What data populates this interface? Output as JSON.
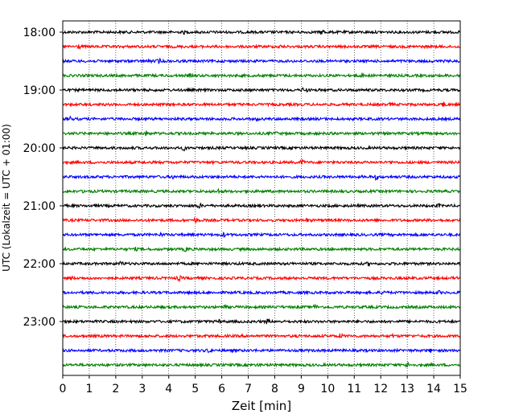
{
  "chart_data": {
    "type": "line",
    "title": "",
    "xlabel": "Zeit  [min]",
    "ylabel": "UTC (Lokalzeit = UTC + 01:00)",
    "xlim": [
      0,
      15
    ],
    "x_ticks": [
      0,
      1,
      2,
      3,
      4,
      5,
      6,
      7,
      8,
      9,
      10,
      11,
      12,
      13,
      14,
      15
    ],
    "y_tick_labels": [
      "18:00",
      "19:00",
      "20:00",
      "21:00",
      "22:00",
      "23:00"
    ],
    "grid": {
      "x": true,
      "y": false,
      "style": "dotted"
    },
    "trace_interval_minutes": 15,
    "trace_count": 24,
    "trace_colors": [
      "#000000",
      "#ff0000",
      "#0000ff",
      "#008000"
    ],
    "series": [
      {
        "start": "18:00"
      },
      {
        "start": "18:15"
      },
      {
        "start": "18:30"
      },
      {
        "start": "18:45"
      },
      {
        "start": "19:00"
      },
      {
        "start": "19:15"
      },
      {
        "start": "19:30"
      },
      {
        "start": "19:45"
      },
      {
        "start": "20:00"
      },
      {
        "start": "20:15"
      },
      {
        "start": "20:30"
      },
      {
        "start": "20:45"
      },
      {
        "start": "21:00"
      },
      {
        "start": "21:15"
      },
      {
        "start": "21:30"
      },
      {
        "start": "21:45"
      },
      {
        "start": "22:00"
      },
      {
        "start": "22:15"
      },
      {
        "start": "22:30"
      },
      {
        "start": "22:45"
      },
      {
        "start": "23:00"
      },
      {
        "start": "23:15"
      },
      {
        "start": "23:30"
      },
      {
        "start": "23:45"
      }
    ]
  }
}
